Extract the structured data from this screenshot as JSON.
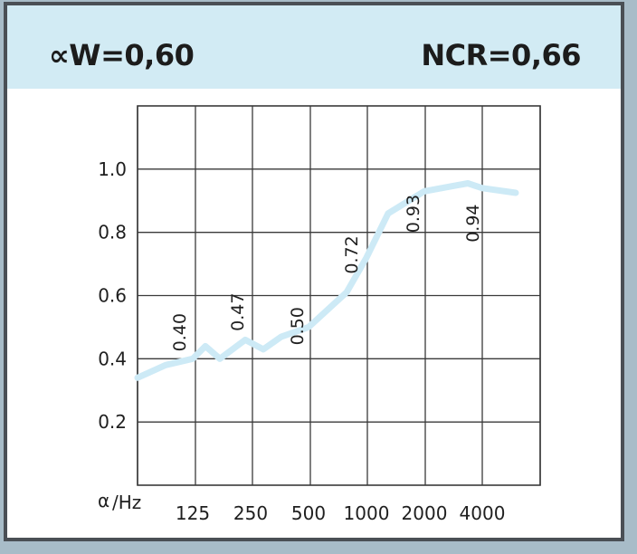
{
  "header": {
    "alpha_w": "∝W=0,60",
    "ncr": "NCR=0,66"
  },
  "colors": {
    "header_bg": "#d2ebf4",
    "curve": "#cdeaf6",
    "grid": "#3a3a3a",
    "frame": "#4a4f55"
  },
  "chart_data": {
    "type": "line",
    "xlabel_symbol": "α",
    "xlabel_unit": "/Hz",
    "categories": [
      "125",
      "250",
      "500",
      "1000",
      "2000",
      "4000"
    ],
    "y_ticks": [
      "0.2",
      "0.4",
      "0.6",
      "0.8",
      "1.0"
    ],
    "ylim": [
      0,
      1.2
    ],
    "grid": true,
    "series": [
      {
        "values": [
          0.4,
          0.47,
          0.5,
          0.72,
          0.93,
          0.94
        ],
        "labels": [
          "0.40",
          "0.47",
          "0.50",
          "0.72",
          "0.93",
          "0.94"
        ]
      }
    ]
  }
}
